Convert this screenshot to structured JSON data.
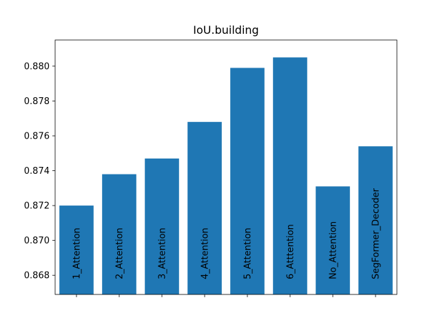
{
  "chart_data": {
    "type": "bar",
    "title": "IoU.building",
    "xlabel": "",
    "ylabel": "",
    "categories": [
      "1_Attention",
      "2_Attention",
      "3_Attention",
      "4_Attention",
      "5_Attention",
      "6_Atttention",
      "No_Attention",
      "SegFormer_Decoder"
    ],
    "values": [
      0.872,
      0.8738,
      0.8747,
      0.8768,
      0.8799,
      0.8805,
      0.8731,
      0.8754
    ],
    "ylim": [
      0.8669,
      0.8815
    ],
    "yticks": [
      "0.868",
      "0.870",
      "0.872",
      "0.874",
      "0.876",
      "0.878",
      "0.880"
    ],
    "bar_color": "#1f77b4",
    "grid": false,
    "category_labels_inside_bars": true
  }
}
